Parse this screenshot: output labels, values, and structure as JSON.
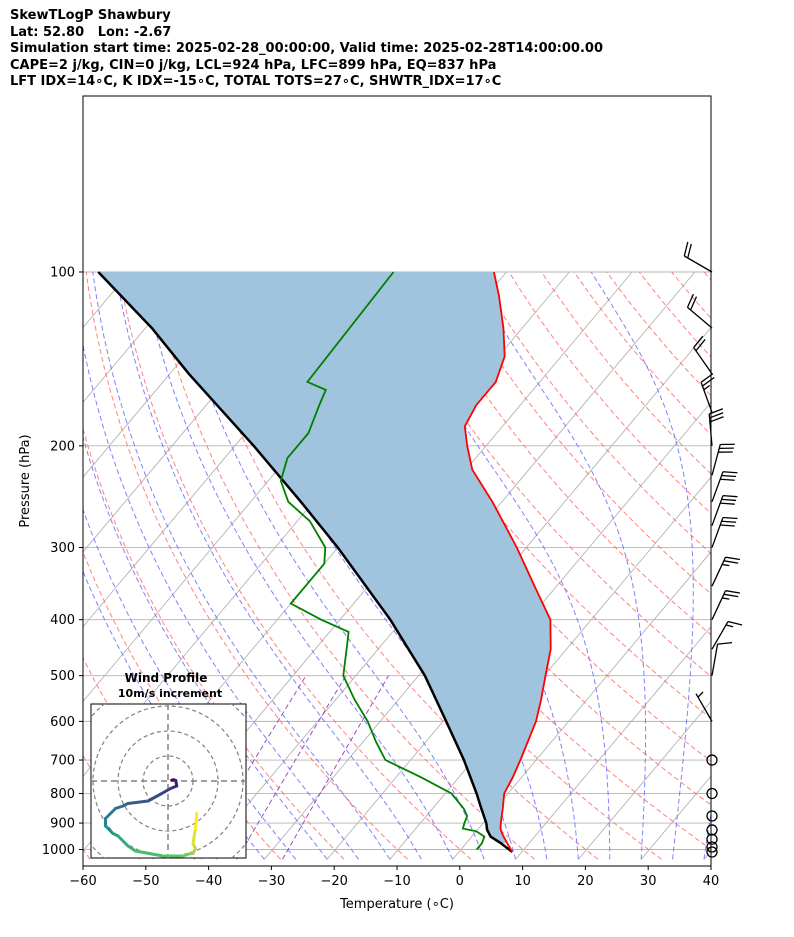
{
  "header": {
    "line1": "SkewTLogP Shawbury",
    "line2": "Lat: 52.80   Lon: -2.67",
    "line3": "Simulation start time: 2025-02-28_00:00:00, Valid time: 2025-02-28T14:00:00.00",
    "line4": "CAPE=2 j/kg, CIN=0 j/kg, LCL=924 hPa, LFC=899 hPa, EQ=837 hPa",
    "line5": "LFT IDX=14∘C, K IDX=-15∘C, TOTAL TOTS=27∘C, SHWTR_IDX=17∘C"
  },
  "colors": {
    "temperature": "#ff0000",
    "dewpoint": "#008000",
    "parcel": "#000000",
    "shading": "#a0c4de",
    "dry_adiabat": "#ff6b6b",
    "moist_adiabat": "#6a6aff",
    "mixing_ratio": "#9a4ec2",
    "isotherm": "#b4b4b4",
    "isobar": "#b4b4b4"
  },
  "chart_data": [
    {
      "type": "line",
      "chart": "skew-t log-p",
      "xlabel": "Temperature (∘C)",
      "ylabel": "Pressure (hPa)",
      "xlim": [
        -60,
        40
      ],
      "ylim": [
        1040,
        100
      ],
      "y_scale": "log",
      "x_ticks": [
        "−60",
        "−50",
        "−40",
        "−30",
        "−20",
        "−10",
        "0",
        "10",
        "20",
        "30",
        "40"
      ],
      "y_ticks": [
        "100",
        "200",
        "300",
        "400",
        "500",
        "600",
        "700",
        "800",
        "900",
        "1000"
      ],
      "grid": true,
      "series": [
        {
          "key": "temperature",
          "pressure": [
            1010,
            975,
            940,
            920,
            900,
            850,
            800,
            750,
            700,
            650,
            600,
            550,
            500,
            450,
            400,
            350,
            300,
            250,
            220,
            200,
            185,
            170,
            155,
            140,
            125,
            110,
            100
          ],
          "values": [
            8.5,
            6.5,
            4.5,
            3.5,
            2.8,
            1.2,
            -0.6,
            -1.4,
            -2.5,
            -3.8,
            -5.2,
            -7.3,
            -9.8,
            -12.5,
            -16.5,
            -23.5,
            -31.5,
            -41.5,
            -49.0,
            -53.0,
            -56.0,
            -57.0,
            -57.0,
            -59.0,
            -63.0,
            -68.0,
            -72.0
          ]
        },
        {
          "key": "dewpoint",
          "pressure": [
            1000,
            975,
            950,
            930,
            920,
            900,
            875,
            850,
            800,
            750,
            700,
            650,
            600,
            550,
            500,
            450,
            420,
            400,
            375,
            350,
            320,
            300,
            270,
            250,
            230,
            210,
            190,
            170,
            160,
            155,
            100
          ],
          "values": [
            2.5,
            2.5,
            2.0,
            0.0,
            -2.5,
            -3.0,
            -3.5,
            -5.0,
            -9.0,
            -16.0,
            -24.0,
            -28.0,
            -32.0,
            -37.0,
            -42.0,
            -45.0,
            -47.0,
            -53.0,
            -60.0,
            -60.0,
            -60.0,
            -62.0,
            -68.0,
            -74.0,
            -78.0,
            -80.0,
            -80.0,
            -82.0,
            -83.0,
            -87.0,
            -88.0
          ]
        },
        {
          "key": "parcel",
          "pressure": [
            1010,
            975,
            950,
            924,
            900,
            850,
            800,
            700,
            600,
            500,
            400,
            300,
            250,
            200,
            150,
            125,
            100
          ],
          "values": [
            8.5,
            5.5,
            3.0,
            1.5,
            0.5,
            -2.2,
            -5.0,
            -11.5,
            -19.5,
            -29.0,
            -42.0,
            -60.0,
            -72.0,
            -87.0,
            -107.0,
            -119.0,
            -135.0
          ]
        }
      ],
      "wind_barbs": [
        {
          "pressure": 100,
          "speed_kt": 20,
          "direction_deg": 300
        },
        {
          "pressure": 125,
          "speed_kt": 20,
          "direction_deg": 310
        },
        {
          "pressure": 150,
          "speed_kt": 20,
          "direction_deg": 325
        },
        {
          "pressure": 175,
          "speed_kt": 25,
          "direction_deg": 340
        },
        {
          "pressure": 200,
          "speed_kt": 30,
          "direction_deg": 355
        },
        {
          "pressure": 225,
          "speed_kt": 30,
          "direction_deg": 15
        },
        {
          "pressure": 250,
          "speed_kt": 30,
          "direction_deg": 20
        },
        {
          "pressure": 275,
          "speed_kt": 30,
          "direction_deg": 20
        },
        {
          "pressure": 300,
          "speed_kt": 30,
          "direction_deg": 20
        },
        {
          "pressure": 350,
          "speed_kt": 25,
          "direction_deg": 25
        },
        {
          "pressure": 400,
          "speed_kt": 25,
          "direction_deg": 25
        },
        {
          "pressure": 450,
          "speed_kt": 15,
          "direction_deg": 30
        },
        {
          "pressure": 500,
          "speed_kt": 10,
          "direction_deg": 10
        },
        {
          "pressure": 600,
          "speed_kt": 5,
          "direction_deg": 330
        },
        {
          "pressure": 700,
          "speed_kt": 0,
          "direction_deg": 0
        },
        {
          "pressure": 800,
          "speed_kt": 0,
          "direction_deg": 0
        },
        {
          "pressure": 875,
          "speed_kt": 0,
          "direction_deg": 0
        },
        {
          "pressure": 925,
          "speed_kt": 0,
          "direction_deg": 0
        },
        {
          "pressure": 960,
          "speed_kt": 0,
          "direction_deg": 0
        },
        {
          "pressure": 990,
          "speed_kt": 0,
          "direction_deg": 0
        },
        {
          "pressure": 1010,
          "speed_kt": 0,
          "direction_deg": 0
        }
      ]
    },
    {
      "type": "line",
      "chart": "hodograph",
      "title": "Wind Profile",
      "subtitle": "10m/s increment",
      "ring_step_ms": 10,
      "colormap": [
        "#440154",
        "#3b528b",
        "#21908d",
        "#5dc963",
        "#fde725"
      ],
      "u": [
        1.5,
        2.3,
        3.1,
        3.5,
        1.0,
        -2.5,
        -8.0,
        -16.0,
        -18.0,
        -21.0,
        -25.0,
        -25.0,
        -22.0,
        -20.0,
        -16.0,
        -13.0,
        -2.0,
        6.0,
        9.0,
        10.0,
        11.0,
        10.0,
        11.0,
        11.5
      ],
      "v": [
        0.3,
        0.5,
        0.2,
        -2.0,
        -3.0,
        -5.0,
        -8.0,
        -9.0,
        -10.0,
        -11.0,
        -15.0,
        -18.0,
        -21.0,
        -22.0,
        -26.0,
        -28.0,
        -30.0,
        -30.0,
        -29.0,
        -29.0,
        -27.0,
        -25.0,
        -19.0,
        -13.0
      ]
    }
  ]
}
